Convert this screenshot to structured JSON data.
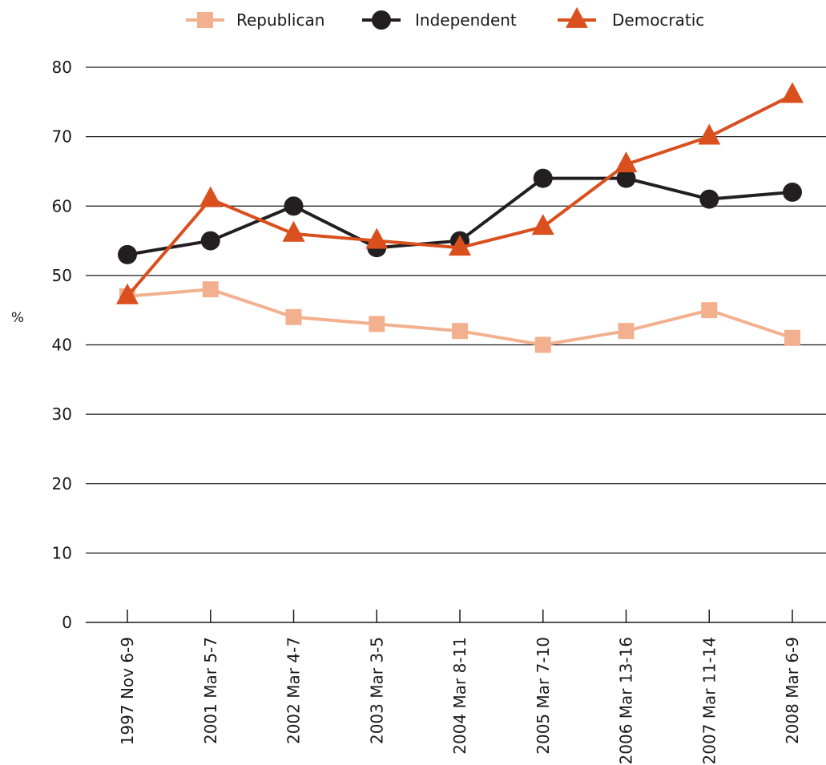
{
  "chart_data": {
    "type": "line",
    "title": "",
    "xlabel": "",
    "ylabel": "%",
    "ylim": [
      0,
      80
    ],
    "yticks": [
      0,
      10,
      20,
      30,
      40,
      50,
      60,
      70,
      80
    ],
    "grid": "horizontal",
    "legend_position": "top-center",
    "categories": [
      "1997 Nov 6-9",
      "2001 Mar 5-7",
      "2002 Mar 4-7",
      "2003 Mar 3-5",
      "2004 Mar 8-11",
      "2005 Mar 7-10",
      "2006 Mar 13-16",
      "2007 Mar 11-14",
      "2008 Mar 6-9"
    ],
    "series": [
      {
        "name": "Republican",
        "color": "#f2b08e",
        "marker": "square",
        "values": [
          47,
          48,
          44,
          43,
          42,
          40,
          42,
          45,
          41
        ]
      },
      {
        "name": "Independent",
        "color": "#231f20",
        "marker": "circle",
        "values": [
          53,
          55,
          60,
          54,
          55,
          64,
          64,
          61,
          62
        ]
      },
      {
        "name": "Democratic",
        "color": "#d94f1e",
        "marker": "triangle",
        "values": [
          47,
          61,
          56,
          55,
          54,
          57,
          66,
          70,
          76
        ]
      }
    ]
  }
}
